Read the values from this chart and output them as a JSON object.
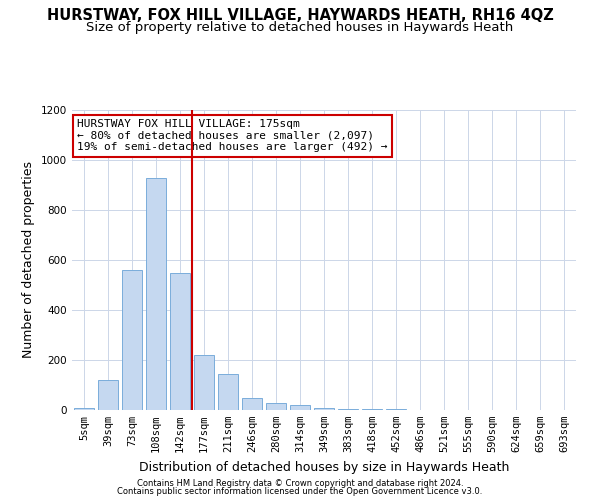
{
  "title": "HURSTWAY, FOX HILL VILLAGE, HAYWARDS HEATH, RH16 4QZ",
  "subtitle": "Size of property relative to detached houses in Haywards Heath",
  "xlabel": "Distribution of detached houses by size in Haywards Heath",
  "ylabel": "Number of detached properties",
  "categories": [
    "5sqm",
    "39sqm",
    "73sqm",
    "108sqm",
    "142sqm",
    "177sqm",
    "211sqm",
    "246sqm",
    "280sqm",
    "314sqm",
    "349sqm",
    "383sqm",
    "418sqm",
    "452sqm",
    "486sqm",
    "521sqm",
    "555sqm",
    "590sqm",
    "624sqm",
    "659sqm",
    "693sqm"
  ],
  "values": [
    10,
    120,
    560,
    930,
    550,
    220,
    145,
    50,
    30,
    20,
    10,
    5,
    5,
    5,
    0,
    0,
    0,
    0,
    0,
    0,
    0
  ],
  "bar_color": "#c5d8f0",
  "bar_edge_color": "#7aaddb",
  "vline_x_index": 5,
  "vline_color": "#cc0000",
  "annotation_line1": "HURSTWAY FOX HILL VILLAGE: 175sqm",
  "annotation_line2": "← 80% of detached houses are smaller (2,097)",
  "annotation_line3": "19% of semi-detached houses are larger (492) →",
  "annotation_box_facecolor": "#ffffff",
  "annotation_box_edgecolor": "#cc0000",
  "ylim": [
    0,
    1200
  ],
  "yticks": [
    0,
    200,
    400,
    600,
    800,
    1000,
    1200
  ],
  "footer_line1": "Contains HM Land Registry data © Crown copyright and database right 2024.",
  "footer_line2": "Contains public sector information licensed under the Open Government Licence v3.0.",
  "title_fontsize": 10.5,
  "subtitle_fontsize": 9.5,
  "xlabel_fontsize": 9,
  "ylabel_fontsize": 9,
  "tick_fontsize": 7.5,
  "annotation_fontsize": 8,
  "footer_fontsize": 6,
  "background_color": "#ffffff",
  "grid_color": "#ccd6e8"
}
